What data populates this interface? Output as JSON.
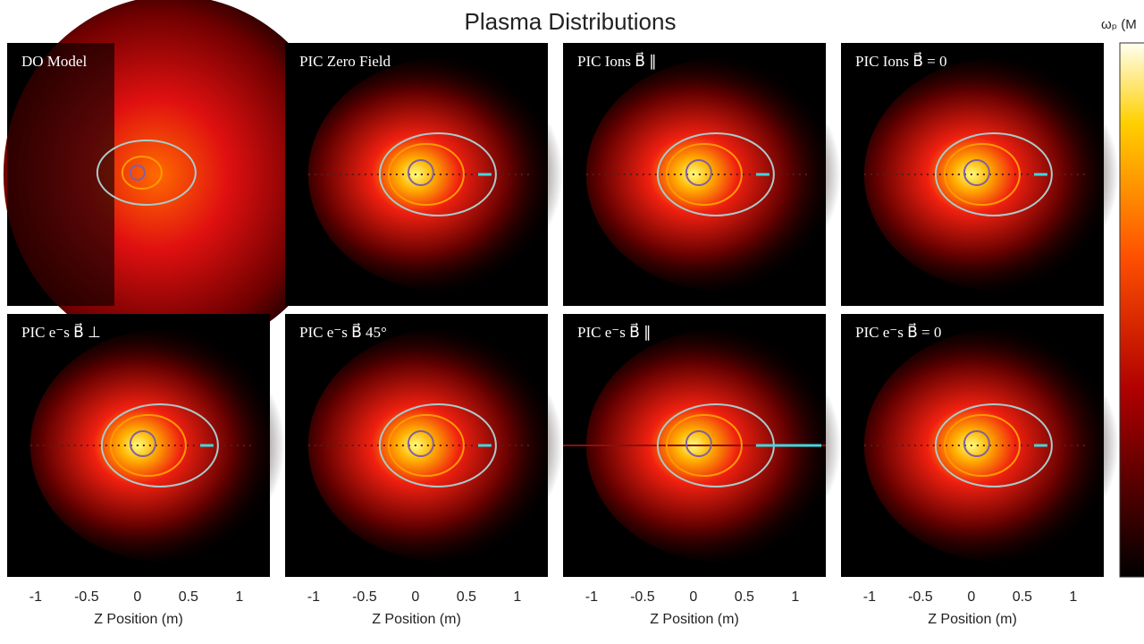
{
  "chart_data": {
    "type": "heatmap",
    "title": "Plasma Distributions",
    "panels": [
      "DO Model",
      "PIC Zero Field",
      "PIC Ions B⃗ ∥",
      "PIC Ions B⃗ = 0",
      "PIC e⁻s B⃗ ⊥",
      "PIC e⁻s B⃗ 45°",
      "PIC e⁻s B⃗ ∥",
      "PIC e⁻s B⃗ = 0"
    ],
    "xlabel": "Z Position (m)",
    "xlim": [
      -1.28,
      1.3
    ],
    "xticks": [
      -1,
      -0.5,
      0,
      0.5,
      1
    ],
    "colorbar_label": "ωₚ (M"
  }
}
